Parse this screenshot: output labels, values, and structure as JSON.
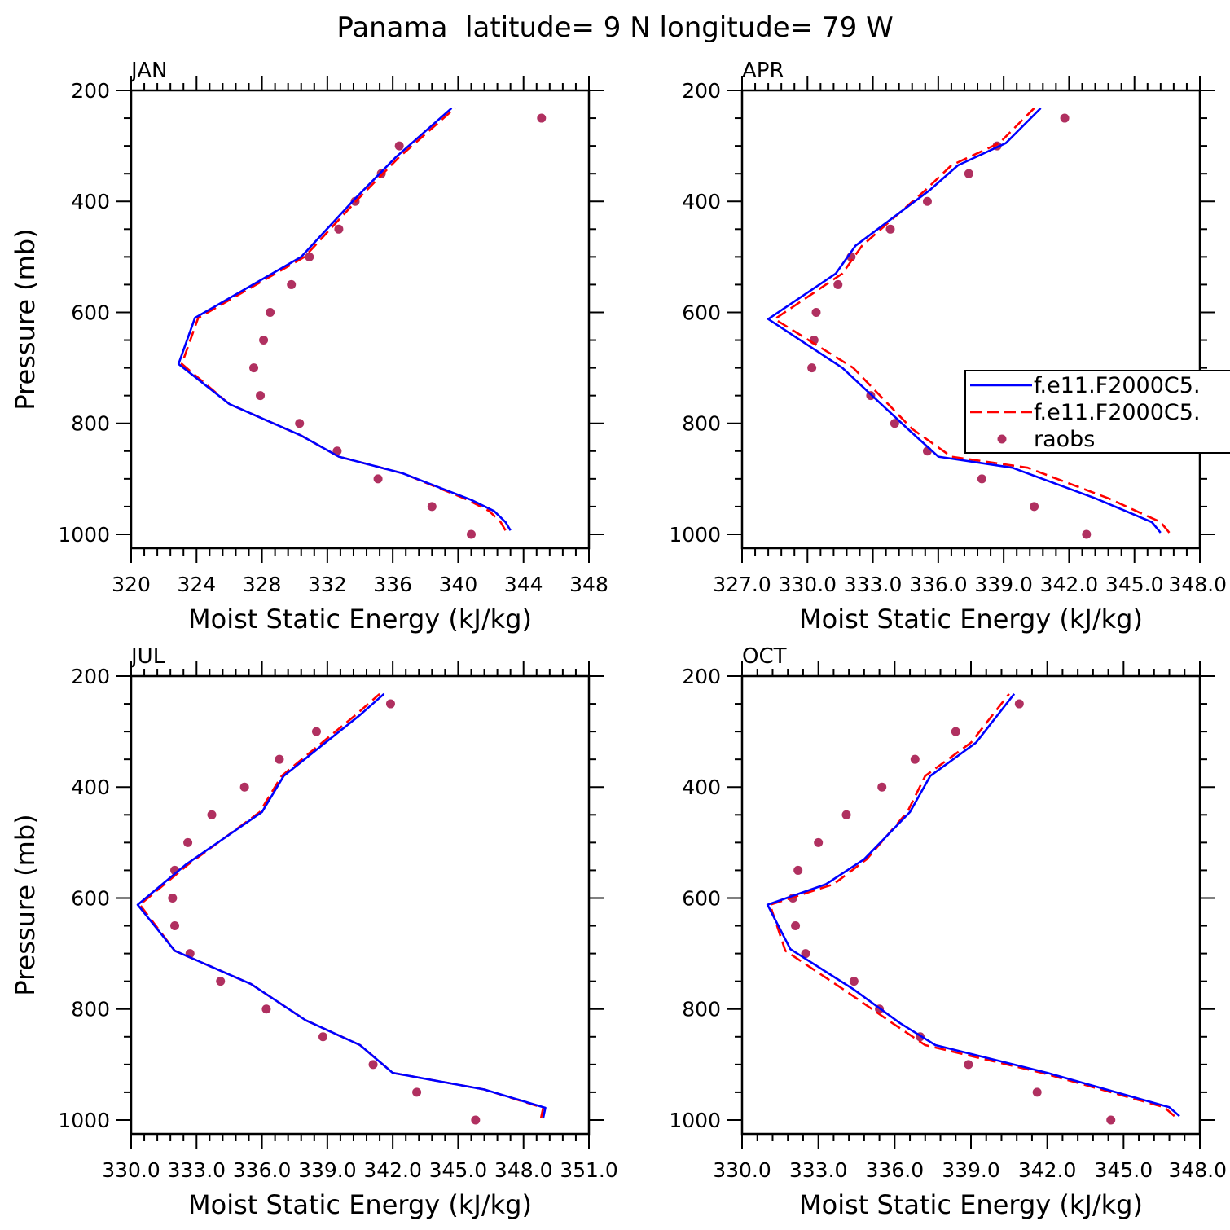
{
  "figure": {
    "title": "Panama  latitude= 9 N longitude= 79 W"
  },
  "legend": {
    "entries": [
      {
        "label": "f.e11.F2000C5.",
        "color": "#0000ff",
        "style": "solid"
      },
      {
        "label": "f.e11.F2000C5.",
        "color": "#ff0000",
        "style": "dashed"
      },
      {
        "label": "raobs",
        "color": "#b03060",
        "style": "dot"
      }
    ]
  },
  "chart_data": [
    {
      "type": "line",
      "panel": "JAN",
      "title": "JAN",
      "xlabel": "Moist Static Energy (kJ/kg)",
      "ylabel": "Pressure (mb)",
      "xlim": [
        320,
        348
      ],
      "ylim": [
        200,
        1025
      ],
      "y_inverted": true,
      "xticks": [
        320,
        324,
        328,
        332,
        336,
        340,
        344,
        348
      ],
      "xtick_labels": [
        "320",
        "324",
        "328",
        "332",
        "336",
        "340",
        "344",
        "348"
      ],
      "yticks": [
        200,
        400,
        600,
        800,
        1000
      ],
      "ytick_labels": [
        "200",
        "400",
        "600",
        "800",
        "1000"
      ],
      "series": [
        {
          "name": "f.e11.F2000C5.",
          "color": "#0000ff",
          "style": "solid",
          "x": [
            343.2,
            342.9,
            342.2,
            340.8,
            336.6,
            332.7,
            330.4,
            326.0,
            322.9,
            323.9,
            330.4,
            333.7,
            336.2,
            339.6
          ],
          "y": [
            993,
            978,
            958,
            938,
            890,
            860,
            822,
            765,
            693,
            610,
            500,
            395,
            320,
            232
          ]
        },
        {
          "name": "f.e11.F2000C5.",
          "color": "#ff0000",
          "style": "dashed",
          "x": [
            342.9,
            342.6,
            341.9,
            340.6,
            336.6,
            332.7,
            330.4,
            326.0,
            323.1,
            324.1,
            330.6,
            333.9,
            336.4,
            339.8
          ],
          "y": [
            993,
            978,
            958,
            938,
            890,
            860,
            822,
            765,
            693,
            610,
            500,
            395,
            320,
            232
          ]
        },
        {
          "name": "raobs",
          "color": "#b03060",
          "style": "dot",
          "x": [
            340.8,
            338.4,
            335.1,
            332.6,
            330.3,
            327.9,
            327.5,
            328.1,
            328.5,
            329.8,
            330.9,
            332.7,
            333.7,
            335.3,
            336.4,
            345.1
          ],
          "y": [
            1000,
            950,
            900,
            850,
            800,
            750,
            700,
            650,
            600,
            550,
            500,
            450,
            400,
            350,
            300,
            250
          ]
        }
      ]
    },
    {
      "type": "line",
      "panel": "APR",
      "title": "APR",
      "xlabel": "Moist Static Energy (kJ/kg)",
      "ylabel": "",
      "xlim": [
        327.0,
        348.0
      ],
      "ylim": [
        200,
        1025
      ],
      "y_inverted": true,
      "xticks": [
        327,
        330,
        333,
        336,
        339,
        342,
        345,
        348
      ],
      "xtick_labels": [
        "327.0",
        "330.0",
        "333.0",
        "336.0",
        "339.0",
        "342.0",
        "345.0",
        "348.0"
      ],
      "yticks": [
        200,
        400,
        600,
        800,
        1000
      ],
      "ytick_labels": [
        "200",
        "400",
        "600",
        "800",
        "1000"
      ],
      "series": [
        {
          "name": "f.e11.F2000C5.",
          "color": "#0000ff",
          "style": "solid",
          "x": [
            346.2,
            345.8,
            343.2,
            339.4,
            336.0,
            334.6,
            331.6,
            328.2,
            331.3,
            332.2,
            335.6,
            336.9,
            339.1,
            340.7
          ],
          "y": [
            997,
            978,
            935,
            880,
            860,
            810,
            700,
            612,
            530,
            480,
            380,
            335,
            295,
            232
          ]
        },
        {
          "name": "f.e11.F2000C5.",
          "color": "#ff0000",
          "style": "dashed",
          "x": [
            346.6,
            346.2,
            343.8,
            340.1,
            336.6,
            334.8,
            332.1,
            328.5,
            331.6,
            332.5,
            335.4,
            336.6,
            338.8,
            340.4
          ],
          "y": [
            997,
            978,
            935,
            880,
            860,
            810,
            700,
            612,
            530,
            480,
            380,
            335,
            295,
            232
          ]
        },
        {
          "name": "raobs",
          "color": "#b03060",
          "style": "dot",
          "x": [
            342.8,
            340.4,
            338.0,
            335.5,
            334.0,
            332.9,
            330.2,
            330.3,
            330.4,
            331.4,
            332.0,
            333.8,
            335.5,
            337.4,
            338.7,
            341.8
          ],
          "y": [
            1000,
            950,
            900,
            850,
            800,
            750,
            700,
            650,
            600,
            550,
            500,
            450,
            400,
            350,
            300,
            250
          ]
        }
      ]
    },
    {
      "type": "line",
      "panel": "JUL",
      "title": "JUL",
      "xlabel": "Moist Static Energy (kJ/kg)",
      "ylabel": "Pressure (mb)",
      "xlim": [
        330.0,
        351.0
      ],
      "ylim": [
        200,
        1025
      ],
      "y_inverted": true,
      "xticks": [
        330,
        333,
        336,
        339,
        342,
        345,
        348,
        351
      ],
      "xtick_labels": [
        "330.0",
        "333.0",
        "336.0",
        "339.0",
        "342.0",
        "345.0",
        "348.0",
        "351.0"
      ],
      "yticks": [
        200,
        400,
        600,
        800,
        1000
      ],
      "ytick_labels": [
        "200",
        "400",
        "600",
        "800",
        "1000"
      ],
      "series": [
        {
          "name": "f.e11.F2000C5.",
          "color": "#0000ff",
          "style": "solid",
          "x": [
            348.9,
            349.0,
            346.2,
            342.0,
            340.5,
            338.0,
            335.5,
            332.0,
            330.3,
            332.5,
            336.0,
            337.0,
            340.5,
            341.6
          ],
          "y": [
            997,
            978,
            945,
            915,
            865,
            820,
            755,
            695,
            612,
            540,
            445,
            380,
            270,
            232
          ]
        },
        {
          "name": "f.e11.F2000C5.",
          "color": "#ff0000",
          "style": "dashed",
          "x": [
            348.8,
            348.9,
            346.2,
            342.0,
            340.5,
            338.0,
            335.5,
            332.0,
            330.4,
            332.6,
            335.9,
            336.9,
            340.3,
            341.4
          ],
          "y": [
            997,
            978,
            945,
            915,
            865,
            820,
            755,
            695,
            612,
            540,
            445,
            380,
            270,
            232
          ]
        },
        {
          "name": "raobs",
          "color": "#b03060",
          "style": "dot",
          "x": [
            345.8,
            343.1,
            341.1,
            338.8,
            336.2,
            334.1,
            332.7,
            332.0,
            331.9,
            332.0,
            332.6,
            333.7,
            335.2,
            336.8,
            338.5,
            341.9
          ],
          "y": [
            1000,
            950,
            900,
            850,
            800,
            750,
            700,
            650,
            600,
            550,
            500,
            450,
            400,
            350,
            300,
            250
          ]
        }
      ]
    },
    {
      "type": "line",
      "panel": "OCT",
      "title": "OCT",
      "xlabel": "Moist Static Energy (kJ/kg)",
      "ylabel": "",
      "xlim": [
        330.0,
        348.0
      ],
      "ylim": [
        200,
        1025
      ],
      "y_inverted": true,
      "xticks": [
        330,
        333,
        336,
        339,
        342,
        345,
        348
      ],
      "xtick_labels": [
        "330.0",
        "333.0",
        "336.0",
        "339.0",
        "342.0",
        "345.0",
        "348.0"
      ],
      "yticks": [
        200,
        400,
        600,
        800,
        1000
      ],
      "ytick_labels": [
        "200",
        "400",
        "600",
        "800",
        "1000"
      ],
      "series": [
        {
          "name": "f.e11.F2000C5.",
          "color": "#0000ff",
          "style": "solid",
          "x": [
            347.2,
            346.8,
            342.0,
            337.6,
            336.2,
            334.4,
            331.9,
            331.0,
            333.3,
            334.8,
            336.6,
            337.4,
            339.2,
            340.7
          ],
          "y": [
            993,
            977,
            915,
            865,
            825,
            765,
            692,
            612,
            575,
            530,
            445,
            380,
            320,
            232
          ]
        },
        {
          "name": "f.e11.F2000C5.",
          "color": "#ff0000",
          "style": "dashed",
          "x": [
            347.0,
            346.6,
            341.8,
            337.2,
            335.9,
            334.0,
            331.7,
            331.1,
            333.6,
            334.9,
            336.5,
            337.2,
            339.0,
            340.5
          ],
          "y": [
            993,
            977,
            915,
            865,
            825,
            765,
            695,
            612,
            575,
            530,
            445,
            380,
            320,
            232
          ]
        },
        {
          "name": "raobs",
          "color": "#b03060",
          "style": "dot",
          "x": [
            344.5,
            341.6,
            338.9,
            337.0,
            335.4,
            334.4,
            332.5,
            332.1,
            332.0,
            332.2,
            333.0,
            334.1,
            335.5,
            336.8,
            338.4,
            340.9
          ],
          "y": [
            1000,
            950,
            900,
            850,
            800,
            750,
            700,
            650,
            600,
            550,
            500,
            450,
            400,
            350,
            300,
            250
          ]
        }
      ]
    }
  ]
}
